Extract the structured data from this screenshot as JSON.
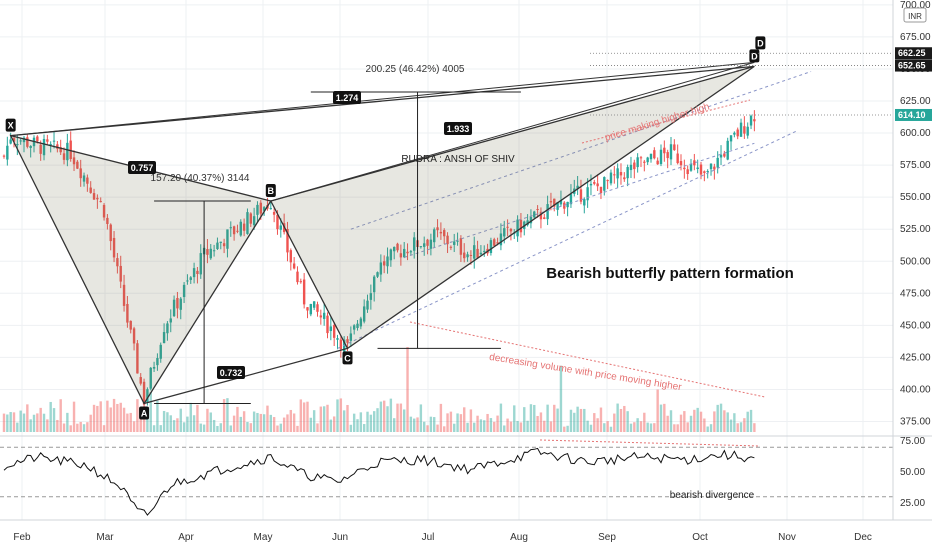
{
  "chart_data": {
    "type": "candlestick",
    "currency_badge": "INR",
    "price_axis_ticks": [
      700.0,
      675.0,
      650.0,
      625.0,
      600.0,
      575.0,
      550.0,
      525.0,
      500.0,
      475.0,
      450.0,
      425.0,
      400.0,
      375.0
    ],
    "price_axis_labels": [
      "700.00",
      "675.00",
      "650.00",
      "625.00",
      "600.00",
      "575.00",
      "550.00",
      "525.00",
      "500.00",
      "475.00",
      "450.00",
      "425.00",
      "400.00",
      "375.00"
    ],
    "price_tags": [
      {
        "label": "662.25",
        "value": 662.25,
        "color": "#1a1a1a"
      },
      {
        "label": "652.65",
        "value": 652.65,
        "color": "#1a1a1a"
      },
      {
        "label": "614.10",
        "value": 614.1,
        "color": "#26a69a"
      }
    ],
    "month_labels": [
      "Feb",
      "Mar",
      "Apr",
      "May",
      "Jun",
      "Jul",
      "Aug",
      "Sep",
      "Oct",
      "Nov",
      "Dec"
    ],
    "rsi_axis_labels": [
      "75.00",
      "50.00",
      "25.00"
    ],
    "rsi_axis_ticks": [
      75,
      50,
      25
    ],
    "pattern_points": [
      {
        "label": "X",
        "day": 2,
        "price": 598
      },
      {
        "label": "A",
        "day": 42,
        "price": 389
      },
      {
        "label": "B",
        "day": 80,
        "price": 547
      },
      {
        "label": "C",
        "day": 103,
        "price": 432
      },
      {
        "label": "D",
        "day": 225,
        "price": 652
      }
    ],
    "ratio_labels": [
      "0.757",
      "0.732",
      "1.274",
      "1.933"
    ],
    "measure_labels": [
      "157.20 (40.37%) 3144",
      "200.25 (46.42%) 4005"
    ],
    "annotations": [
      "Bearish butterfly pattern formation",
      "RUDRA : ANSH OF SHIV",
      "price making higher high",
      "decreasing volume with price moving higher",
      "bearish divergence"
    ]
  },
  "colors": {
    "up": "#26a69a",
    "down": "#ef5350",
    "pattern_fill": "rgba(120,120,90,0.18)",
    "annotation_red": "#e57373",
    "grid": "#eef0f3"
  }
}
